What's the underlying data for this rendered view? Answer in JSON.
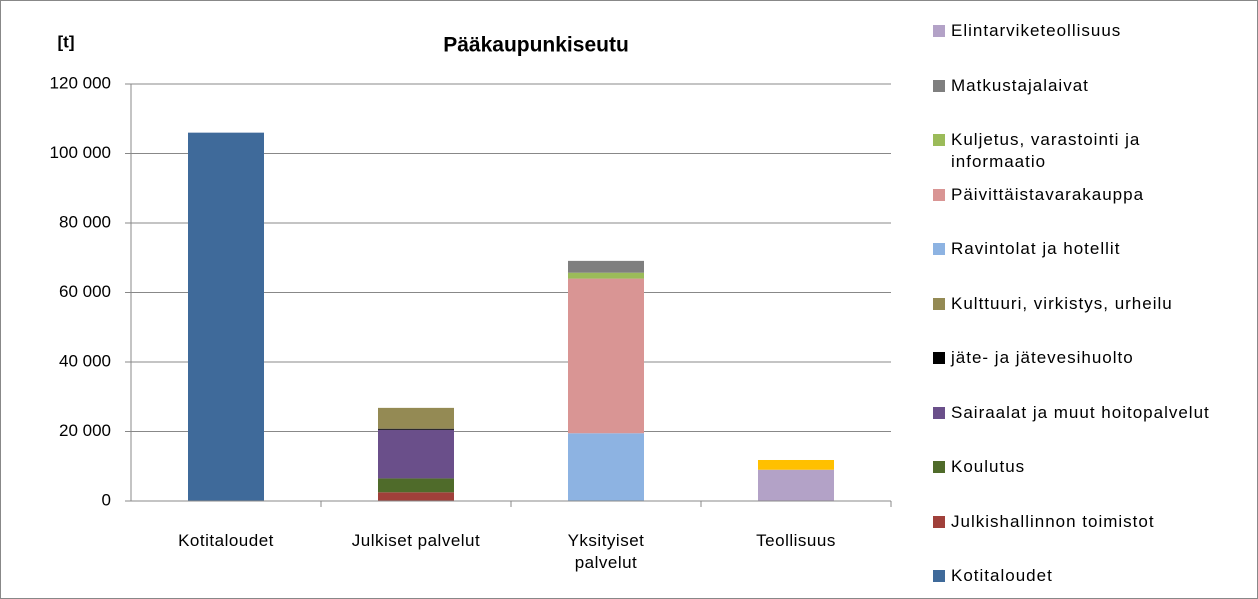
{
  "chart_data": {
    "type": "stacked_bar",
    "title": "Pääkaupunkiseutu",
    "y_label": "[t]",
    "categories": [
      "Kotitaloudet",
      "Julkiset palvelut",
      "Yksityiset palvelut",
      "Teollisuus"
    ],
    "series": [
      {
        "name": "Kotitaloudet",
        "color": "#3f6a9a",
        "values": [
          106000,
          0,
          0,
          0
        ]
      },
      {
        "name": "Julkishallinnon toimistot",
        "color": "#a0403a",
        "values": [
          0,
          2500,
          0,
          0
        ]
      },
      {
        "name": "Koulutus",
        "color": "#4f6b2a",
        "values": [
          0,
          4000,
          0,
          0
        ]
      },
      {
        "name": "Sairaalat ja muut hoitopalvelut",
        "color": "#6a4f8a",
        "values": [
          0,
          14000,
          0,
          0
        ]
      },
      {
        "name": "jäte- ja jätevesihuolto",
        "color": "#000000",
        "values": [
          0,
          300,
          0,
          0
        ]
      },
      {
        "name": "Kulttuuri, virkistys, urheilu",
        "color": "#948a54",
        "values": [
          0,
          6000,
          0,
          0
        ]
      },
      {
        "name": "Ravintolat ja hotellit",
        "color": "#8db3e2",
        "values": [
          0,
          0,
          19500,
          0
        ]
      },
      {
        "name": "Päivittäistavarakauppa",
        "color": "#d99594",
        "values": [
          0,
          0,
          44500,
          0
        ]
      },
      {
        "name": "Kuljetus, varastointi ja informaatio",
        "color": "#9bbb59",
        "values": [
          0,
          0,
          1700,
          0
        ]
      },
      {
        "name": "Matkustajalaivat",
        "color": "#7f7f7f",
        "values": [
          0,
          0,
          3400,
          0
        ]
      },
      {
        "name": "Elintarviketeollisuus",
        "color": "#b3a2c7",
        "values": [
          0,
          0,
          0,
          9000
        ]
      },
      {
        "name": null,
        "color": "#ffc000",
        "values": [
          0,
          0,
          0,
          2800
        ]
      }
    ],
    "ylim": [
      0,
      120000
    ],
    "yticks": [
      0,
      {
        "value": 20000,
        "label": "20 000"
      },
      {
        "value": 40000,
        "label": "40 000"
      },
      {
        "value": 60000,
        "label": "60 000"
      },
      {
        "value": 80000,
        "label": "80 000"
      },
      {
        "value": 100000,
        "label": "100 000"
      },
      {
        "value": 120000,
        "label": "120 000"
      }
    ],
    "grid": true,
    "legend": "right"
  }
}
